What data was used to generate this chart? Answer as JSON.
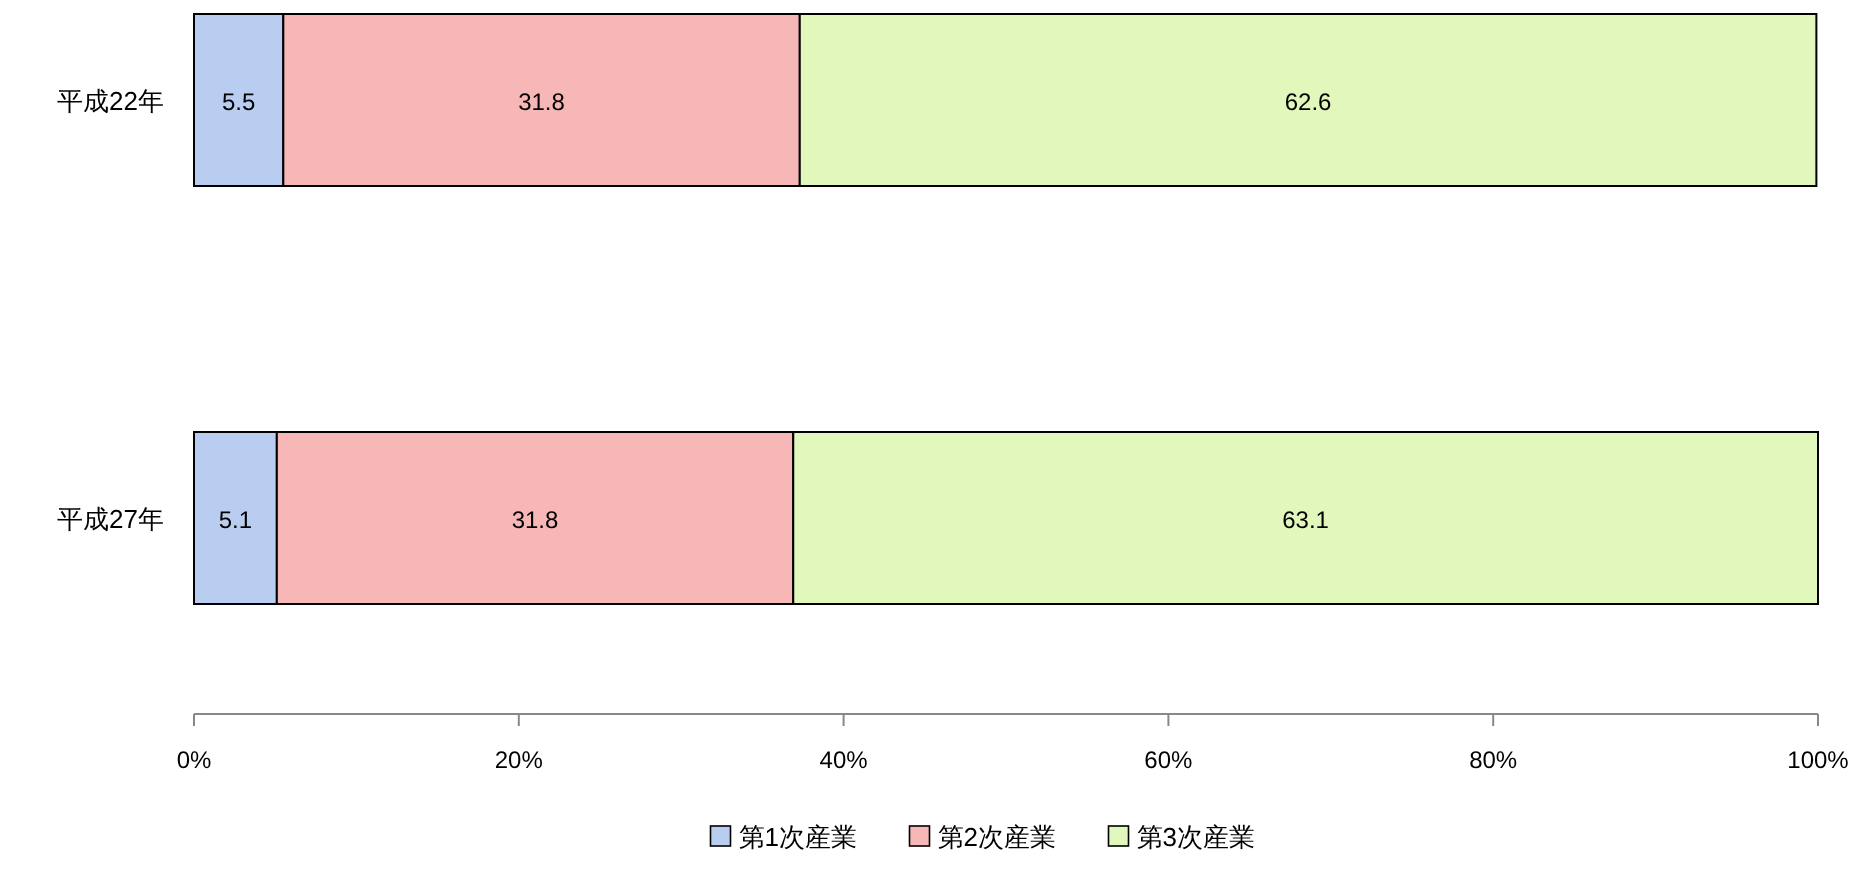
{
  "chart_data": {
    "type": "bar",
    "orientation": "horizontal",
    "stacked": true,
    "categories": [
      "平成22年",
      "平成27年"
    ],
    "series": [
      {
        "name": "第1次産業",
        "color": "#b9cdf0",
        "values": [
          5.5,
          5.1
        ]
      },
      {
        "name": "第2次産業",
        "color": "#f7b7b7",
        "values": [
          31.8,
          31.8
        ]
      },
      {
        "name": "第3次産業",
        "color": "#e2f7bb",
        "values": [
          62.6,
          63.1
        ]
      }
    ],
    "xlim": [
      0,
      100
    ],
    "xticks": [
      {
        "value": 0,
        "label": "0%"
      },
      {
        "value": 20,
        "label": "20%"
      },
      {
        "value": 40,
        "label": "40%"
      },
      {
        "value": 60,
        "label": "60%"
      },
      {
        "value": 80,
        "label": "80%"
      },
      {
        "value": 100,
        "label": "100%"
      }
    ],
    "data_labels": true,
    "legend": "bottom",
    "grid": false
  }
}
